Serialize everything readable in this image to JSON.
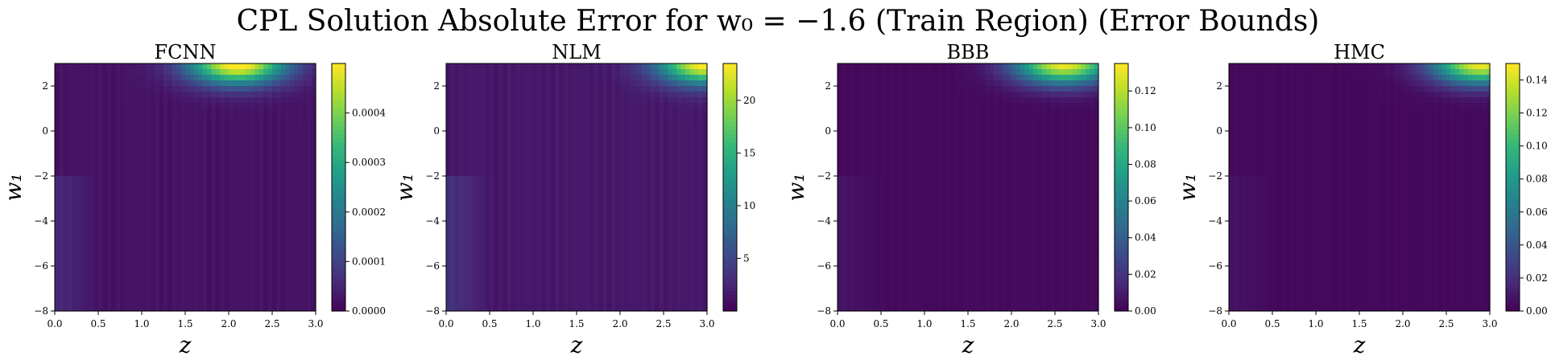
{
  "figure": {
    "title": "CPL Solution Absolute Error for w₀ = −1.6 (Train Region) (Error Bounds)"
  },
  "colormap": [
    "#440154",
    "#482878",
    "#3e4989",
    "#31688e",
    "#26828e",
    "#1f9e89",
    "#35b779",
    "#6ece58",
    "#b5de2b",
    "#fde725"
  ],
  "chart_data": [
    {
      "type": "heatmap",
      "title": "FCNN",
      "xlabel": "z",
      "ylabel": "w₁",
      "xlim": [
        0.0,
        3.0
      ],
      "ylim": [
        -8,
        3
      ],
      "x_ticks": [
        "0.0",
        "0.5",
        "1.0",
        "1.5",
        "2.0",
        "2.5",
        "3.0"
      ],
      "y_ticks": [
        "−8",
        "−6",
        "−4",
        "−2",
        "0",
        "2"
      ],
      "colorbar": {
        "range": [
          0.0,
          0.0005
        ],
        "ticks": [
          "0.0000",
          "0.0001",
          "0.0002",
          "0.0003",
          "0.0004"
        ]
      },
      "hot_spot": {
        "z": 2.1,
        "w1": 3.0,
        "peak": 0.0005
      },
      "background": 3e-05
    },
    {
      "type": "heatmap",
      "title": "NLM",
      "xlabel": "z",
      "ylabel": "w₁",
      "xlim": [
        0.0,
        3.0
      ],
      "ylim": [
        -8,
        3
      ],
      "x_ticks": [
        "0.0",
        "0.5",
        "1.0",
        "1.5",
        "2.0",
        "2.5",
        "3.0"
      ],
      "y_ticks": [
        "−8",
        "−6",
        "−4",
        "−2",
        "0",
        "2"
      ],
      "colorbar": {
        "range": [
          0.0,
          23.5
        ],
        "ticks": [
          "5",
          "10",
          "15",
          "20"
        ]
      },
      "hot_spot": {
        "z": 3.0,
        "w1": 3.0,
        "peak": 23.0
      },
      "background": 1.8
    },
    {
      "type": "heatmap",
      "title": "BBB",
      "xlabel": "z",
      "ylabel": "w₁",
      "xlim": [
        0.0,
        3.0
      ],
      "ylim": [
        -8,
        3
      ],
      "x_ticks": [
        "0.0",
        "0.5",
        "1.0",
        "1.5",
        "2.0",
        "2.5",
        "3.0"
      ],
      "y_ticks": [
        "−8",
        "−6",
        "−4",
        "−2",
        "0",
        "2"
      ],
      "colorbar": {
        "range": [
          0.0,
          0.135
        ],
        "ticks": [
          "0.00",
          "0.02",
          "0.04",
          "0.06",
          "0.08",
          "0.10",
          "0.12"
        ]
      },
      "hot_spot": {
        "z": 2.6,
        "w1": 3.0,
        "peak": 0.13
      },
      "background": 0.004
    },
    {
      "type": "heatmap",
      "title": "HMC",
      "xlabel": "z",
      "ylabel": "w₁",
      "xlim": [
        0.0,
        3.0
      ],
      "ylim": [
        -8,
        3
      ],
      "x_ticks": [
        "0.0",
        "0.5",
        "1.0",
        "1.5",
        "2.0",
        "2.5",
        "3.0"
      ],
      "y_ticks": [
        "−8",
        "−6",
        "−4",
        "−2",
        "0",
        "2"
      ],
      "colorbar": {
        "range": [
          0.0,
          0.15
        ],
        "ticks": [
          "0.00",
          "0.02",
          "0.04",
          "0.06",
          "0.08",
          "0.10",
          "0.12",
          "0.14"
        ]
      },
      "hot_spot": {
        "z": 2.9,
        "w1": 3.0,
        "peak": 0.145
      },
      "background": 0.004
    }
  ]
}
